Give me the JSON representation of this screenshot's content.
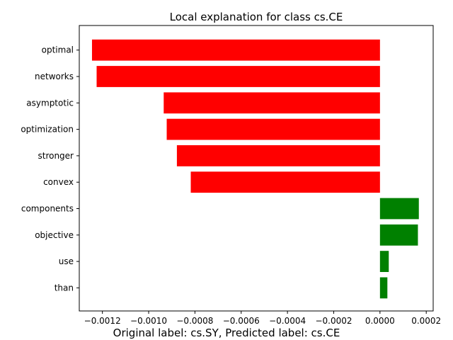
{
  "chart_data": {
    "type": "bar",
    "orientation": "horizontal",
    "title": "Local explanation for class cs.CE",
    "caption": "Original label: cs.SY, Predicted label: cs.CE",
    "categories": [
      "optimal",
      "networks",
      "asymptotic",
      "optimization",
      "stronger",
      "convex",
      "components",
      "objective",
      "use",
      "than"
    ],
    "values": [
      -0.001245,
      -0.001225,
      -0.000935,
      -0.000922,
      -0.000878,
      -0.000818,
      0.000168,
      0.000164,
      3.8e-05,
      3.2e-05
    ],
    "xlim": [
      -0.0013,
      0.00023
    ],
    "xticks": [
      -0.0012,
      -0.001,
      -0.0008,
      -0.0006,
      -0.0004,
      -0.0002,
      0.0,
      0.0002
    ],
    "xtick_labels": [
      "−0.0012",
      "−0.0010",
      "−0.0008",
      "−0.0006",
      "−0.0004",
      "−0.0002",
      "0.0000",
      "0.0002"
    ],
    "grid": false,
    "positive_color": "#008000",
    "negative_color": "#ff0000"
  }
}
